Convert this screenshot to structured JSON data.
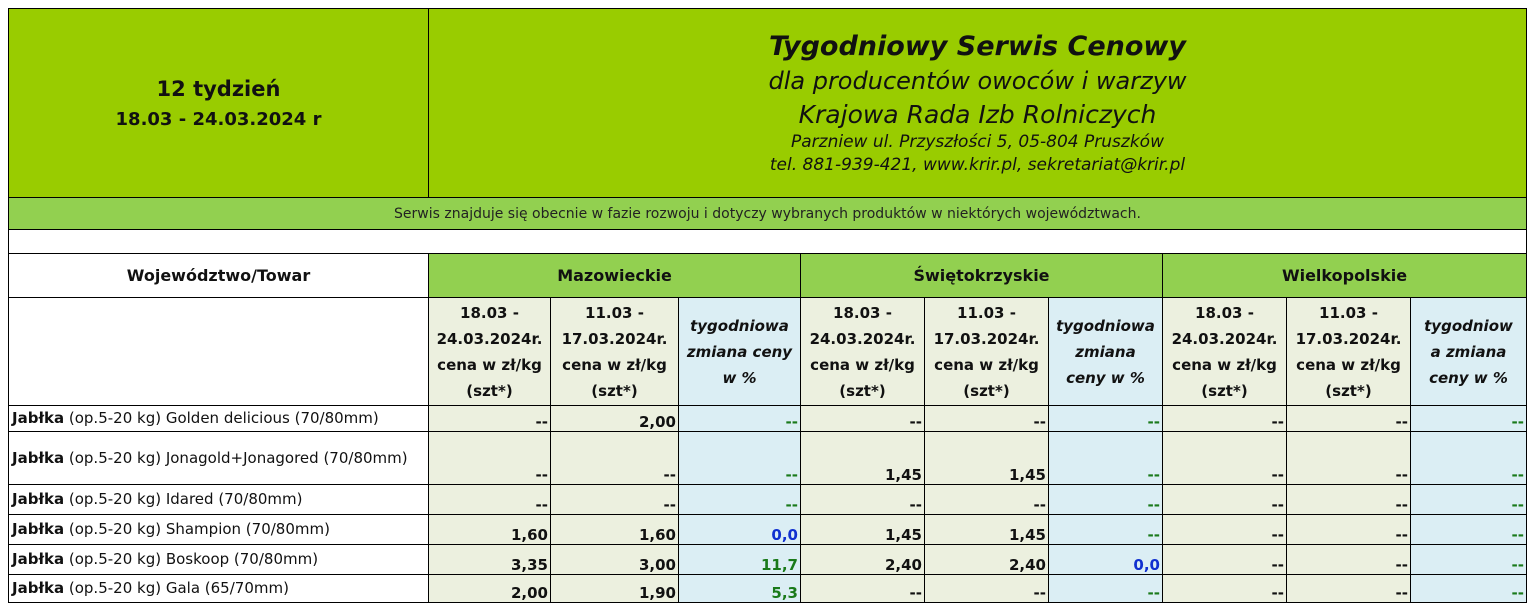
{
  "header": {
    "week": "12 tydzień",
    "dates": "18.03 - 24.03.2024 r",
    "title": "Tygodniowy Serwis Cenowy",
    "subtitle": "dla producentów owoców i warzyw",
    "org": "Krajowa Rada Izb Rolniczych",
    "address": "Parzniew ul. Przyszłości 5, 05-804 Pruszków",
    "contact": "tel. 881-939-421, www.krir.pl, sekretariat@krir.pl"
  },
  "notice": "Serwis znajduje się obecnie w fazie rozwoju i dotyczy wybranych produktów w niektórych województwach.",
  "table": {
    "corner": "Województwo/Towar",
    "regions": [
      "Mazowieckie",
      "Świętokrzyskie",
      "Wielkopolskie"
    ],
    "subheaders": [
      [
        "18.03 -",
        "24.03.2024r.",
        "cena w zł/kg",
        "(szt*)"
      ],
      [
        "11.03 -",
        "17.03.2024r.",
        "cena w zł/kg",
        "(szt*)"
      ],
      [
        "tygodniowa",
        "zmiana ceny",
        "w %"
      ],
      [
        "18.03 -",
        "24.03.2024r.",
        "cena w zł/kg",
        "(szt*)"
      ],
      [
        "11.03 -",
        "17.03.2024r.",
        "cena w zł/kg",
        "(szt*)"
      ],
      [
        "tygodniowa",
        "zmiana",
        "ceny w %"
      ],
      [
        "18.03 -",
        "24.03.2024r.",
        "cena w zł/kg",
        "(szt*)"
      ],
      [
        "11.03 -",
        "17.03.2024r.",
        "cena w zł/kg",
        "(szt*)"
      ],
      [
        "tygodniow",
        "a zmiana",
        "ceny w %"
      ]
    ],
    "rows": [
      {
        "bold": "Jabłka",
        "rest": " (op.5-20 kg) Golden delicious (70/80mm)",
        "values": [
          "--",
          "2,00",
          "--",
          "--",
          "--",
          "--",
          "--",
          "--",
          "--"
        ]
      },
      {
        "bold": "Jabłka",
        "rest": " (op.5-20 kg) Jonagold+Jonagored (70/80mm)",
        "values": [
          "--",
          "--",
          "--",
          "1,45",
          "1,45",
          "--",
          "--",
          "--",
          "--"
        ]
      },
      {
        "bold": "Jabłka",
        "rest": " (op.5-20 kg) Idared (70/80mm)",
        "values": [
          "--",
          "--",
          "--",
          "--",
          "--",
          "--",
          "--",
          "--",
          "--"
        ]
      },
      {
        "bold": "Jabłka",
        "rest": " (op.5-20 kg) Shampion (70/80mm)",
        "values": [
          "1,60",
          "1,60",
          "0,0",
          "1,45",
          "1,45",
          "--",
          "--",
          "--",
          "--"
        ]
      },
      {
        "bold": "Jabłka",
        "rest": " (op.5-20 kg) Boskoop (70/80mm)",
        "values": [
          "3,35",
          "3,00",
          "11,7",
          "2,40",
          "2,40",
          "0,0",
          "--",
          "--",
          "--"
        ]
      },
      {
        "bold": "Jabłka",
        "rest": " (op.5-20 kg) Gala (65/70mm)",
        "values": [
          "2,00",
          "1,90",
          "5,3",
          "--",
          "--",
          "--",
          "--",
          "--",
          "--"
        ]
      }
    ],
    "change_colors": {
      "positive": "#1a7a1a",
      "zero": "#1030d0",
      "none": "#1a7a1a"
    }
  }
}
